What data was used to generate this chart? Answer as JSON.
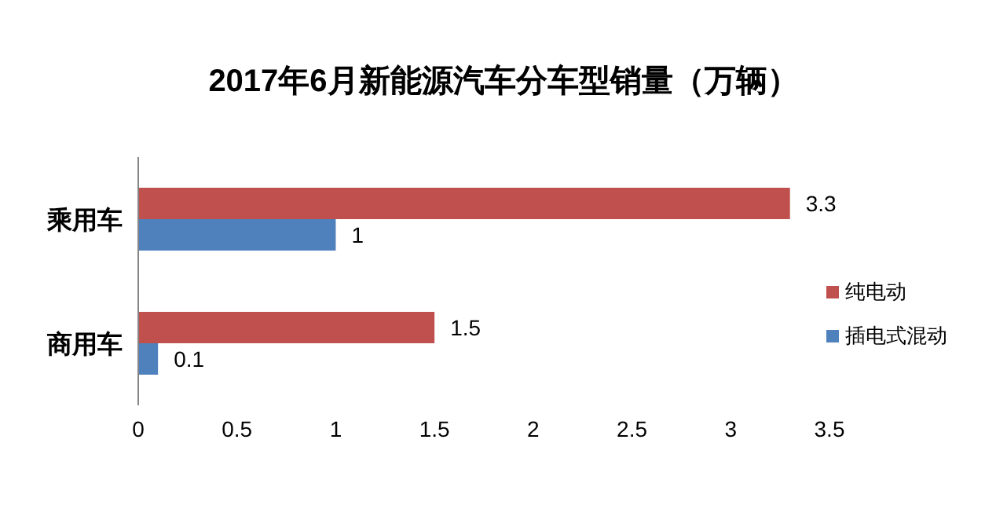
{
  "chart_data": {
    "type": "bar",
    "orientation": "horizontal",
    "title": "2017年6月新能源汽车分车型销量（万辆）",
    "categories": [
      "乘用车",
      "商用车"
    ],
    "series": [
      {
        "name": "纯电动",
        "color": "#c0504d",
        "values": [
          3.3,
          1.5
        ]
      },
      {
        "name": "插电式混动",
        "color": "#4f81bd",
        "values": [
          1,
          0.1
        ]
      }
    ],
    "xlim": [
      0,
      3.5
    ],
    "xticks": [
      0,
      0.5,
      1,
      1.5,
      2,
      2.5,
      3,
      3.5
    ],
    "data_labels": true,
    "legend": "right",
    "grid": false
  }
}
